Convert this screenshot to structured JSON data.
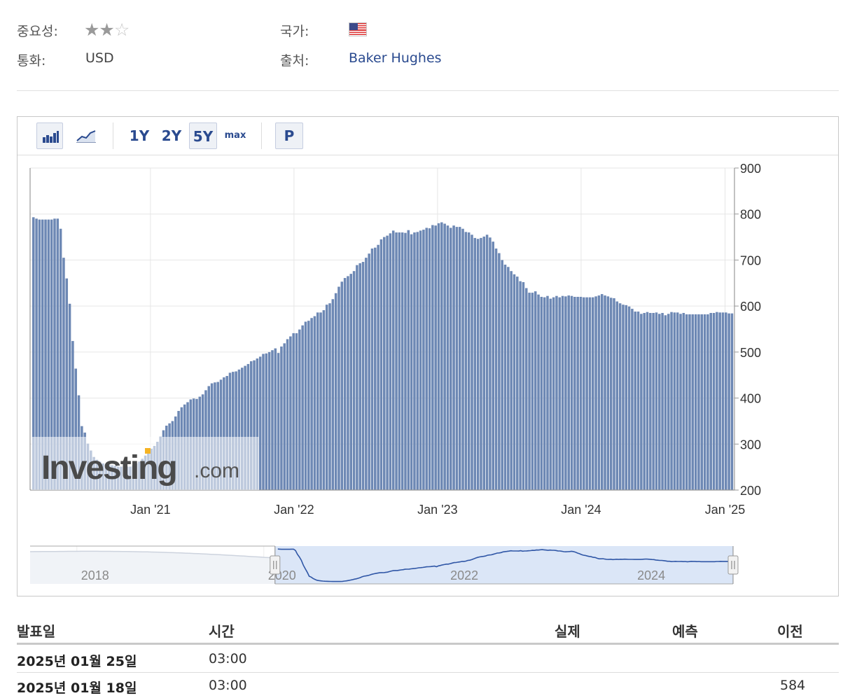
{
  "info": {
    "importance_label": "중요성:",
    "importance_stars_filled": 2,
    "importance_stars_total": 3,
    "country_label": "국가:",
    "country_flag_icon": "us-flag-icon",
    "currency_label": "통화:",
    "currency_value": "USD",
    "source_label": "출처:",
    "source_value": "Baker Hughes"
  },
  "toolbar": {
    "chart_type_buttons": [
      "bar-chart-icon",
      "line-chart-icon"
    ],
    "active_chart_type": "bar-chart-icon",
    "ranges": [
      "1Y",
      "2Y",
      "5Y",
      "max"
    ],
    "active_range": "5Y",
    "p_label": "P"
  },
  "chart_data": {
    "type": "bar",
    "color": "#6d88b4",
    "watermark": "Investing",
    "watermark_suffix": ".com",
    "ylim": [
      200,
      900
    ],
    "yticks": [
      200,
      300,
      400,
      500,
      600,
      700,
      800,
      900
    ],
    "x_range": [
      "2020-03-01",
      "2025-01-25"
    ],
    "x_tick_labels": [
      {
        "label": "Jan '21",
        "date": "2021-01-01"
      },
      {
        "label": "Jan '22",
        "date": "2022-01-01"
      },
      {
        "label": "Jan '23",
        "date": "2023-01-01"
      },
      {
        "label": "Jan '24",
        "date": "2024-01-01"
      },
      {
        "label": "Jan '25",
        "date": "2025-01-01"
      }
    ],
    "series": [
      {
        "values": [
          793,
          790,
          788,
          788,
          788,
          788,
          788,
          790,
          790,
          768,
          705,
          660,
          605,
          524,
          464,
          406,
          339,
          325,
          301,
          286,
          272,
          266,
          262,
          258,
          256,
          255,
          254,
          253,
          251,
          251,
          251,
          251,
          251,
          254,
          258,
          262,
          268,
          275,
          281,
          290,
          296,
          305,
          316,
          330,
          340,
          345,
          350,
          360,
          372,
          380,
          386,
          391,
          397,
          399,
          398,
          403,
          408,
          417,
          426,
          432,
          434,
          435,
          440,
          445,
          448,
          455,
          457,
          458,
          462,
          466,
          470,
          474,
          480,
          482,
          486,
          490,
          496,
          497,
          500,
          504,
          508,
          498,
          512,
          519,
          528,
          534,
          541,
          541,
          549,
          558,
          566,
          568,
          574,
          578,
          586,
          586,
          591,
          603,
          606,
          615,
          628,
          642,
          653,
          661,
          665,
          670,
          676,
          689,
          693,
          696,
          705,
          714,
          725,
          727,
          733,
          745,
          750,
          753,
          758,
          764,
          760,
          760,
          760,
          759,
          765,
          756,
          760,
          761,
          764,
          766,
          770,
          769,
          776,
          775,
          780,
          782,
          779,
          775,
          770,
          775,
          772,
          772,
          768,
          761,
          760,
          755,
          748,
          746,
          748,
          751,
          755,
          749,
          740,
          725,
          715,
          700,
          690,
          685,
          676,
          669,
          664,
          654,
          652,
          639,
          629,
          629,
          632,
          625,
          620,
          619,
          622,
          616,
          619,
          622,
          619,
          622,
          621,
          623,
          622,
          620,
          620,
          620,
          619,
          619,
          619,
          619,
          621,
          623,
          626,
          623,
          621,
          618,
          617,
          610,
          606,
          603,
          602,
          599,
          594,
          588,
          588,
          583,
          585,
          587,
          585,
          585,
          586,
          583,
          585,
          580,
          583,
          587,
          586,
          586,
          583,
          585,
          582,
          582,
          582,
          582,
          582,
          582,
          582,
          582,
          585,
          585,
          587,
          586,
          586,
          586,
          584,
          584
        ]
      }
    ]
  },
  "navigator": {
    "year_labels": [
      {
        "label": "2018",
        "year": 2018.05
      },
      {
        "label": "2020",
        "year": 2020.05
      },
      {
        "label": "2022",
        "year": 2022.0
      },
      {
        "label": "2024",
        "year": 2024.0
      }
    ],
    "range_years": [
      2017.55,
      2025.07
    ],
    "selection_years": [
      2020.17,
      2025.07
    ],
    "line_color": "#2f56a6",
    "fill_color": "#dbe6f7",
    "outside_line_color": "#cdd3de",
    "outside_fill_color": "#f0f3f7",
    "handle_icon": "drag-handle-icon"
  },
  "table": {
    "headers": [
      "발표일",
      "시간",
      "실제",
      "예측",
      "이전"
    ],
    "rows": [
      {
        "date": "2025년 01월 25일",
        "time": "03:00",
        "actual": "",
        "forecast": "",
        "previous": ""
      },
      {
        "date": "2025년 01월 18일",
        "time": "03:00",
        "actual": "",
        "forecast": "",
        "previous": "584"
      }
    ]
  }
}
